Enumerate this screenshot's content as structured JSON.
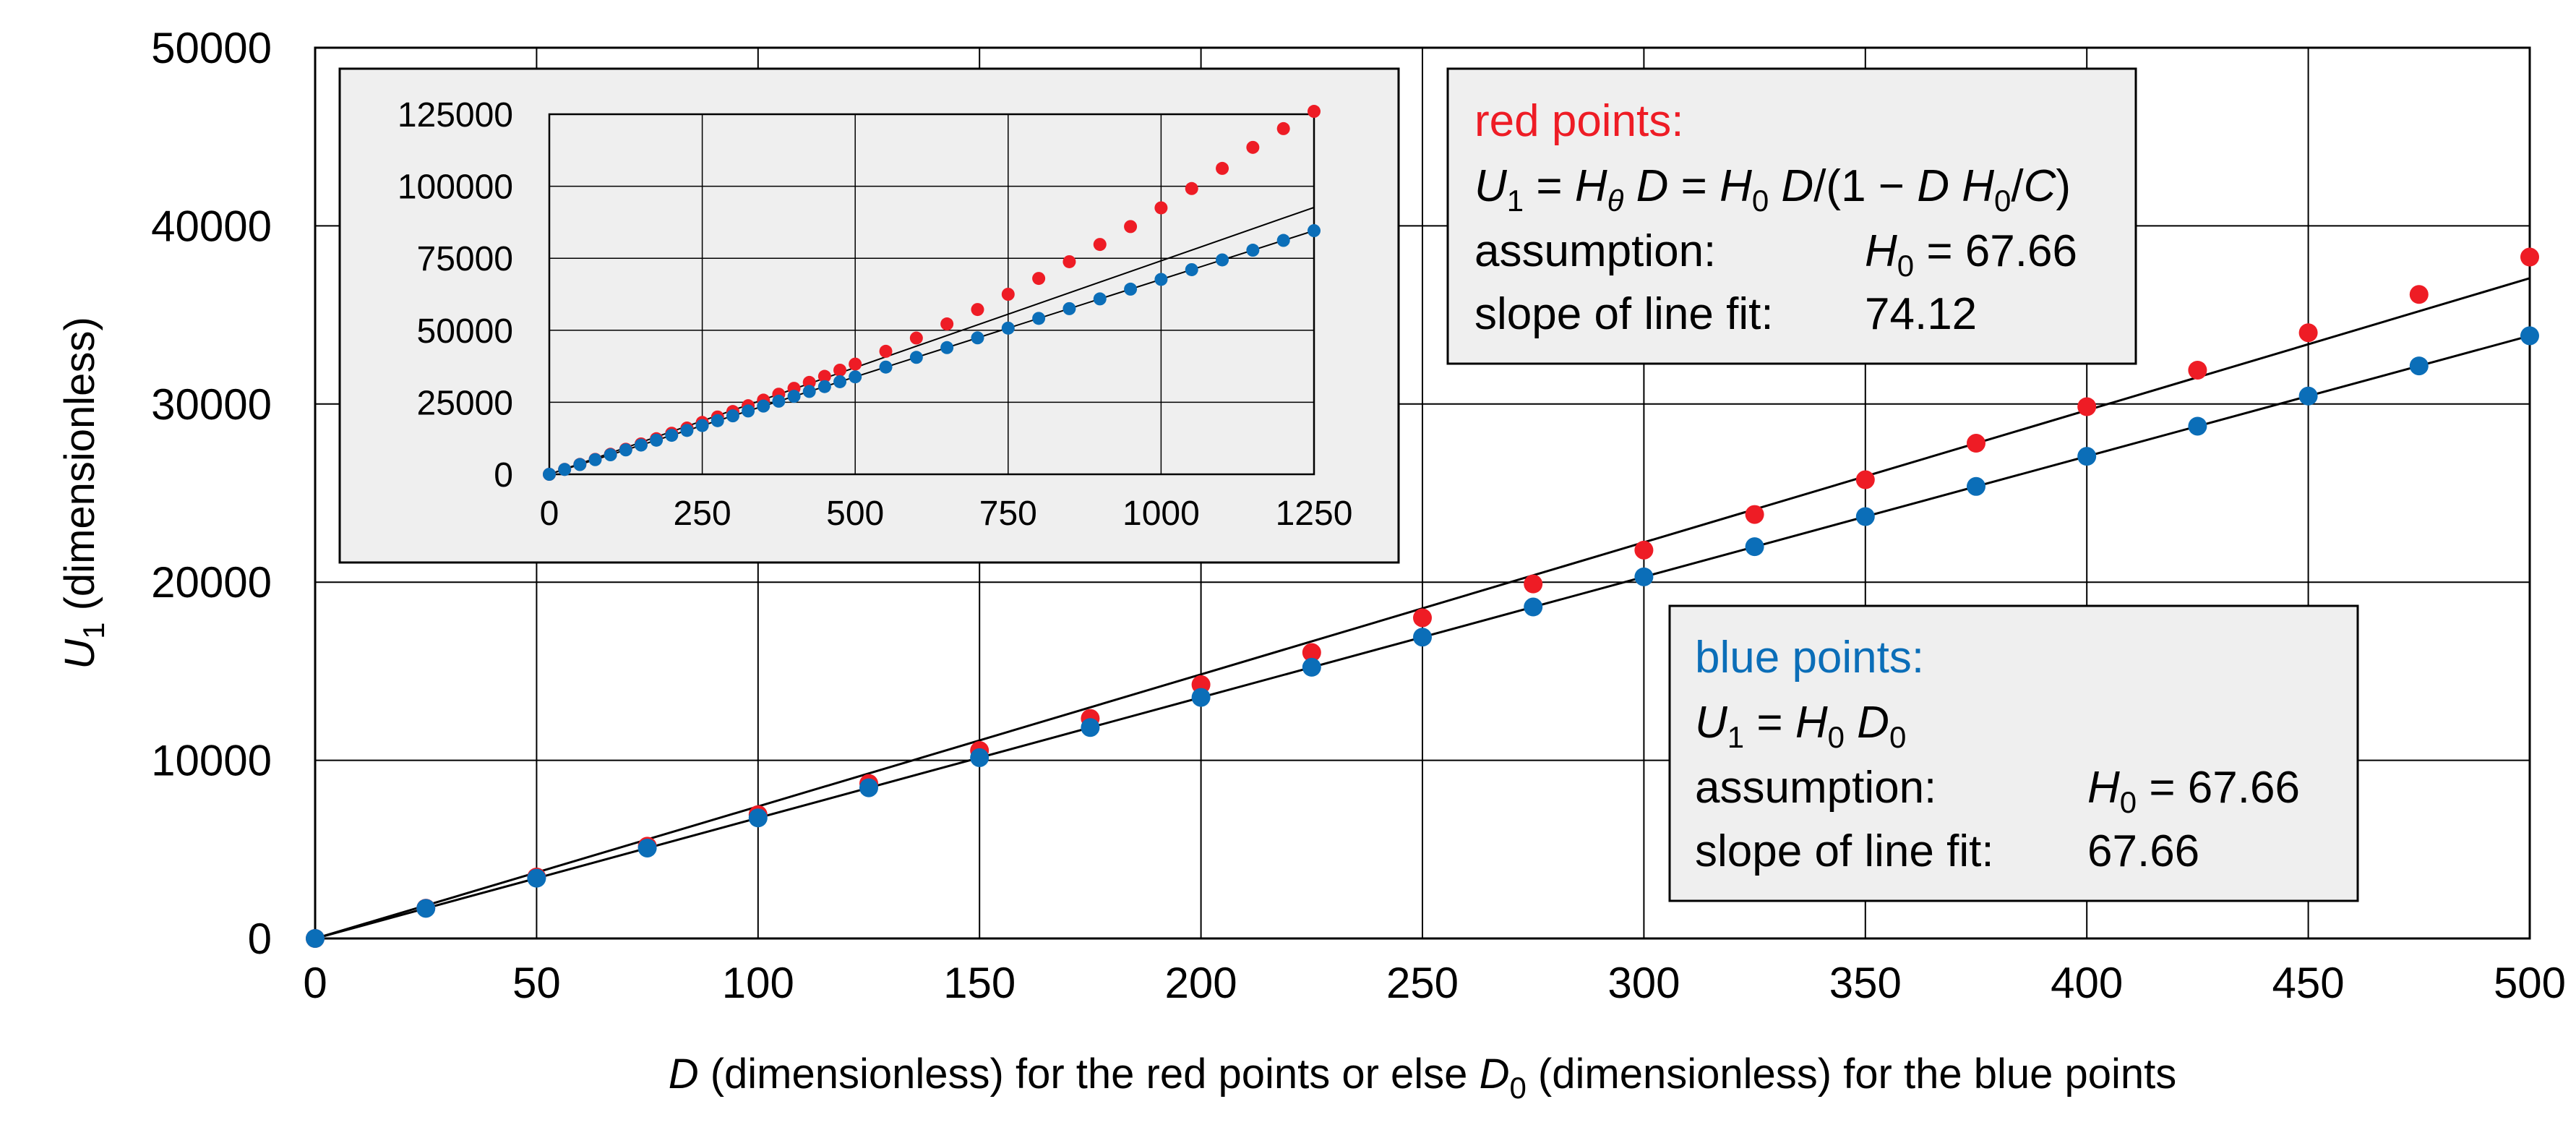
{
  "chart_data": [
    {
      "type": "scatter",
      "panel": "main",
      "xlabel": "D (dimensionless) for the red points or else D0 (dimensionless) for the blue points",
      "ylabel": "U1 (dimensionless)",
      "xlim": [
        0,
        500
      ],
      "ylim": [
        0,
        50000
      ],
      "x_ticks": [
        "0",
        "50",
        "100",
        "150",
        "200",
        "250",
        "300",
        "350",
        "400",
        "450",
        "500"
      ],
      "y_ticks": [
        "0",
        "10000",
        "20000",
        "30000",
        "40000",
        "50000"
      ],
      "grid": true,
      "colors": {
        "red": "#ee1c25",
        "blue": "#0b6eb8",
        "line": "#000000",
        "box_bg": "#efefef"
      },
      "series": [
        {
          "color": "red",
          "x": [
            0,
            25,
            50,
            75,
            100,
            125,
            150,
            175,
            200,
            225,
            250,
            275,
            300,
            325,
            350,
            375,
            400,
            425,
            450,
            475,
            500
          ],
          "y": [
            0,
            1700,
            3450,
            5180,
            6950,
            8700,
            10550,
            12350,
            14250,
            16050,
            18000,
            19900,
            21800,
            23800,
            25750,
            27800,
            29850,
            31900,
            34000,
            36150,
            38250
          ]
        },
        {
          "color": "blue",
          "x": [
            0,
            25,
            50,
            75,
            100,
            125,
            150,
            175,
            200,
            225,
            250,
            275,
            300,
            325,
            350,
            375,
            400,
            425,
            450,
            475,
            500
          ],
          "y": [
            0,
            1690,
            3383,
            5075,
            6766,
            8458,
            10149,
            11841,
            13532,
            15224,
            16915,
            18607,
            20298,
            21990,
            23681,
            25373,
            27064,
            28756,
            30447,
            32139,
            33830
          ]
        }
      ],
      "fit_lines": [
        {
          "color": "red",
          "slope": 74.12
        },
        {
          "color": "blue",
          "slope": 67.66
        }
      ],
      "annotations": [
        {
          "title": "red points:",
          "formula": "U1 = Hθ D = H0 D/(1 − D H0/C)",
          "assumption_label": "assumption:",
          "assumption_value": "H0 = 67.66",
          "slope_label": "slope of line fit:",
          "slope_value": "74.12"
        },
        {
          "title": "blue points:",
          "formula": "U1 = H0 D0",
          "assumption_label": "assumption:",
          "assumption_value": "H0 = 67.66",
          "slope_label": "slope of line fit:",
          "slope_value": "67.66"
        }
      ]
    },
    {
      "type": "scatter",
      "panel": "inset",
      "xlim": [
        0,
        1250
      ],
      "ylim": [
        0,
        125000
      ],
      "x_ticks": [
        "0",
        "250",
        "500",
        "750",
        "1000",
        "1250"
      ],
      "y_ticks": [
        "0",
        "25000",
        "50000",
        "75000",
        "100000",
        "125000"
      ],
      "grid": true,
      "series": [
        {
          "color": "red",
          "x": [
            0,
            25,
            50,
            75,
            100,
            125,
            150,
            175,
            200,
            225,
            250,
            275,
            300,
            325,
            350,
            375,
            400,
            425,
            450,
            475,
            500,
            550,
            600,
            650,
            700,
            750,
            800,
            850,
            900,
            950,
            1000,
            1050,
            1100,
            1150,
            1200,
            1250
          ],
          "y": [
            0,
            1700,
            3450,
            5180,
            6950,
            8700,
            10550,
            12350,
            14250,
            16050,
            18000,
            19900,
            21800,
            23800,
            25750,
            27800,
            29850,
            31900,
            34000,
            36150,
            38250,
            42700,
            47300,
            52200,
            57200,
            62500,
            68000,
            73800,
            79800,
            86000,
            92500,
            99200,
            106200,
            113500,
            120000,
            126000
          ]
        },
        {
          "color": "blue",
          "x": [
            0,
            25,
            50,
            75,
            100,
            125,
            150,
            175,
            200,
            225,
            250,
            275,
            300,
            325,
            350,
            375,
            400,
            425,
            450,
            475,
            500,
            550,
            600,
            650,
            700,
            750,
            800,
            850,
            900,
            950,
            1000,
            1050,
            1100,
            1150,
            1200,
            1250
          ],
          "y": [
            0,
            1690,
            3383,
            5075,
            6766,
            8458,
            10149,
            11841,
            13532,
            15224,
            16915,
            18607,
            20298,
            21990,
            23681,
            25373,
            27064,
            28756,
            30447,
            32139,
            33830,
            37213,
            40596,
            43979,
            47362,
            50745,
            54128,
            57511,
            60894,
            64277,
            67660,
            71043,
            74426,
            77809,
            81192,
            84575
          ]
        }
      ],
      "fit_lines": [
        {
          "color": "red",
          "slope": 74.12
        },
        {
          "color": "blue",
          "slope": 67.66
        }
      ]
    }
  ]
}
